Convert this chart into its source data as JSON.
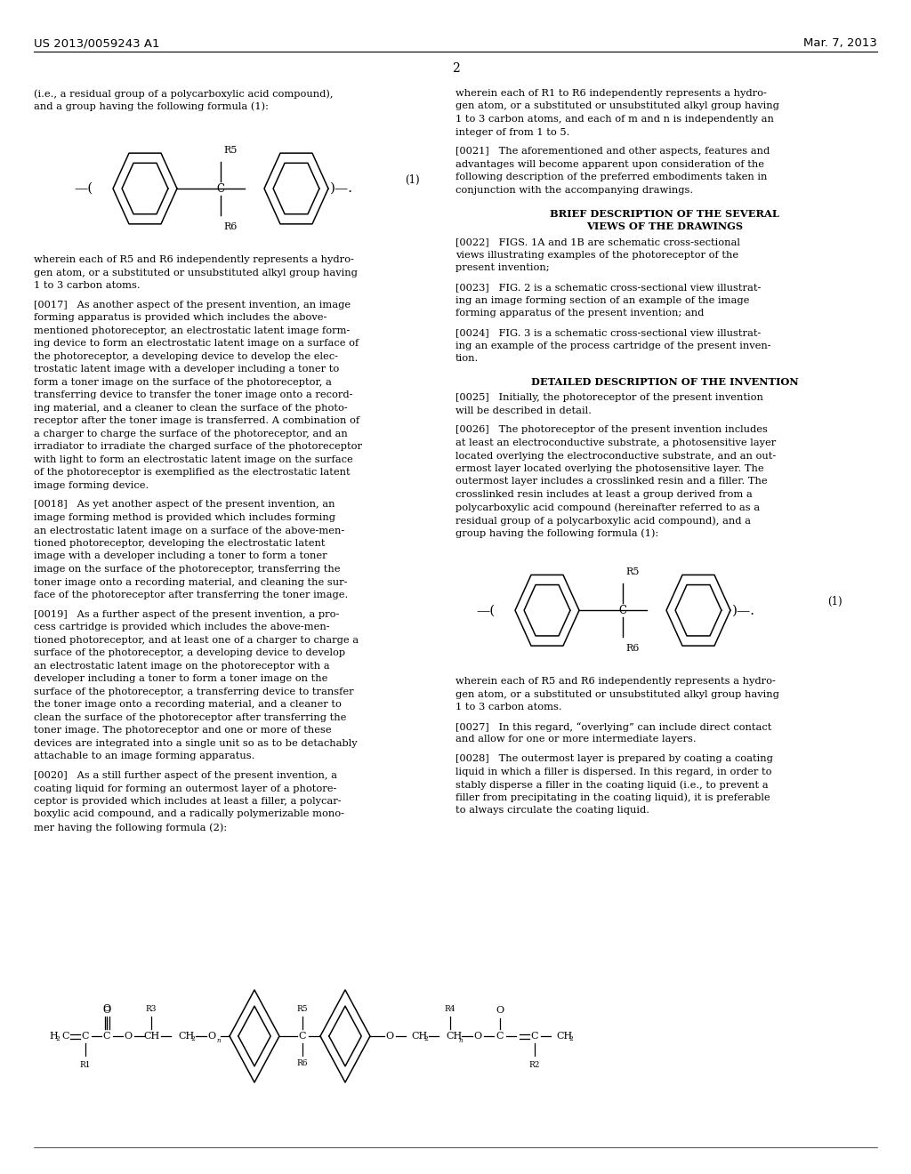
{
  "bg_color": "#ffffff",
  "header_left": "US 2013/0059243 A1",
  "header_right": "Mar. 7, 2013",
  "page_number": "2",
  "text_color": "#000000"
}
